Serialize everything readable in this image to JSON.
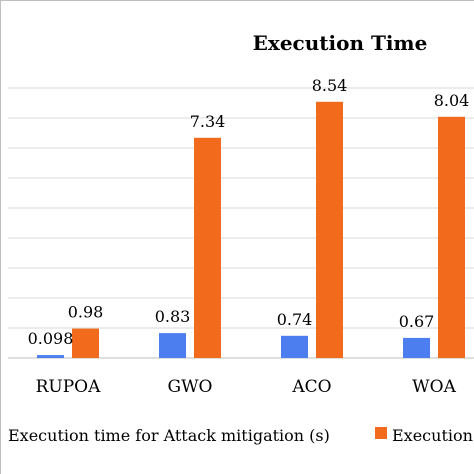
{
  "chart_data": {
    "type": "bar",
    "title": "Execution Time",
    "categories": [
      "RUPOA",
      "GWO",
      "ACO",
      "WOA"
    ],
    "series": [
      {
        "name": "Execution time for Attack mitigation (s)",
        "values": [
          0.098,
          0.83,
          0.74,
          0.67
        ],
        "labels": [
          "0.098",
          "0.83",
          "0.74",
          "0.67"
        ],
        "color": "#4c7ef0"
      },
      {
        "name": "Execution",
        "values": [
          0.98,
          7.34,
          8.54,
          8.04
        ],
        "labels": [
          "0.98",
          "7.34",
          "8.54",
          "8.04"
        ],
        "color": "#f26a1b"
      }
    ],
    "ylim": [
      0,
      9
    ],
    "grid": true,
    "legend": "bottom",
    "xlabel": "",
    "ylabel": ""
  }
}
